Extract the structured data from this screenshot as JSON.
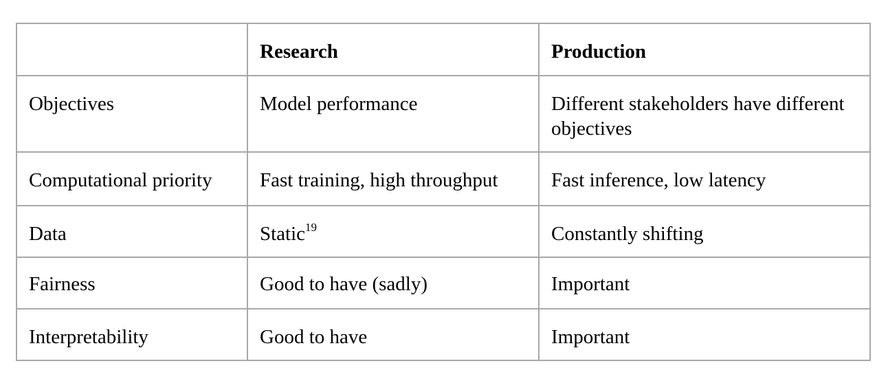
{
  "table": {
    "headers": [
      "",
      "Research",
      "Production"
    ],
    "rows": [
      {
        "label": "Objectives",
        "research": "Model performance",
        "production": "Different stakeholders have different objectives"
      },
      {
        "label": "Computational priority",
        "research": "Fast training, high throughput",
        "production": "Fast inference, low latency"
      },
      {
        "label": "Data",
        "research": "Static",
        "research_footnote": "19",
        "production": "Constantly shifting"
      },
      {
        "label": "Fairness",
        "research": "Good to have (sadly)",
        "production": "Important"
      },
      {
        "label": "Interpretability",
        "research": "Good to have",
        "production": "Important"
      }
    ]
  }
}
